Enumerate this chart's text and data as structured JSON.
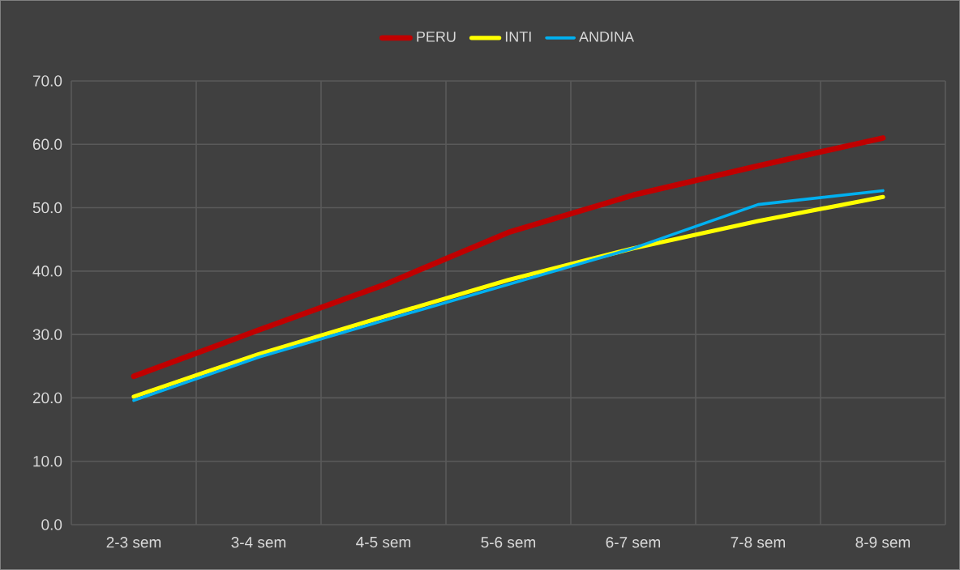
{
  "chart_data": {
    "type": "line",
    "categories": [
      "2-3 sem",
      "3-4 sem",
      "4-5 sem",
      "5-6 sem",
      "6-7 sem",
      "7-8 sem",
      "8-9 sem"
    ],
    "series": [
      {
        "name": "PERU",
        "color": "#c00000",
        "values": [
          23.4,
          30.7,
          37.8,
          46.1,
          52.0,
          56.6,
          61.0
        ]
      },
      {
        "name": "INTI",
        "color": "#ffff00",
        "values": [
          20.2,
          26.9,
          32.8,
          38.6,
          43.6,
          47.9,
          51.7
        ]
      },
      {
        "name": "ANDINA",
        "color": "#00b0f0",
        "values": [
          19.6,
          26.4,
          32.2,
          37.9,
          43.6,
          50.5,
          52.7
        ]
      }
    ],
    "ylim": [
      0,
      70
    ],
    "yticks": [
      {
        "value": 0,
        "label": "0.0"
      },
      {
        "value": 10,
        "label": "10.0"
      },
      {
        "value": 20,
        "label": "20.0"
      },
      {
        "value": 30,
        "label": "30.0"
      },
      {
        "value": 40,
        "label": "40.0"
      },
      {
        "value": 50,
        "label": "50.0"
      },
      {
        "value": 60,
        "label": "60.0"
      },
      {
        "value": 70,
        "label": "70.0"
      }
    ],
    "grid": true,
    "legend": "top"
  }
}
